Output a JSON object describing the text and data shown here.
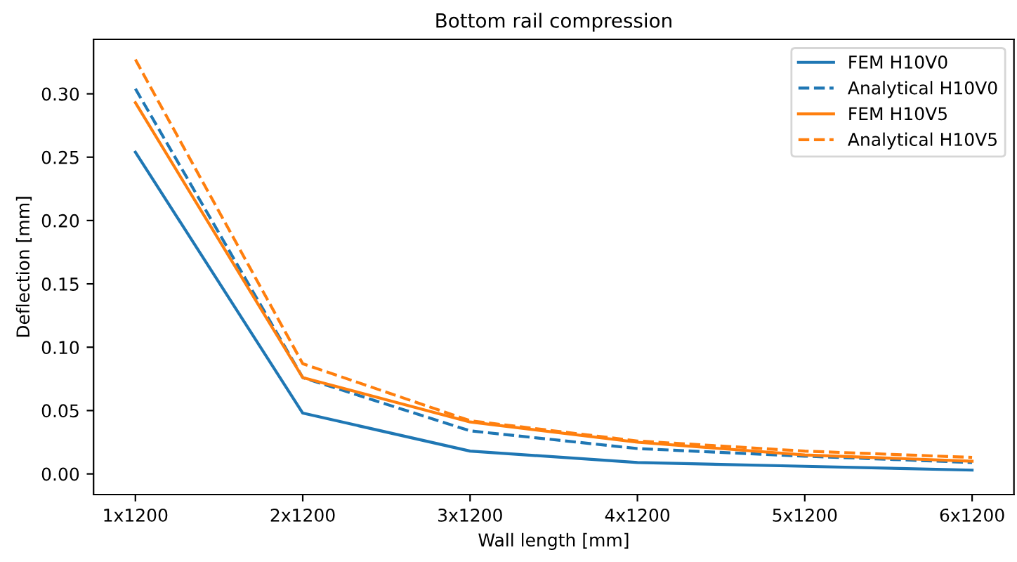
{
  "chart_data": {
    "type": "line",
    "title": "Bottom rail compression",
    "xlabel": "Wall length [mm]",
    "ylabel": "Deflection [mm]",
    "categories": [
      "1x1200",
      "2x1200",
      "3x1200",
      "4x1200",
      "5x1200",
      "6x1200"
    ],
    "series": [
      {
        "name": "FEM H10V0",
        "color": "#1f77b4",
        "line_style": "solid",
        "values": [
          0.254,
          0.048,
          0.018,
          0.009,
          0.006,
          0.003
        ]
      },
      {
        "name": "Analytical H10V0",
        "color": "#1f77b4",
        "line_style": "dashed",
        "values": [
          0.304,
          0.076,
          0.034,
          0.02,
          0.014,
          0.009
        ]
      },
      {
        "name": "FEM H10V5",
        "color": "#ff7f0e",
        "line_style": "solid",
        "values": [
          0.293,
          0.076,
          0.041,
          0.025,
          0.015,
          0.01
        ]
      },
      {
        "name": "Analytical H10V5",
        "color": "#ff7f0e",
        "line_style": "dashed",
        "values": [
          0.327,
          0.087,
          0.042,
          0.026,
          0.018,
          0.013
        ]
      }
    ],
    "ylim": [
      -0.0163,
      0.343
    ],
    "yticks": [
      {
        "value": 0,
        "label": "0.00"
      },
      {
        "value": 0.05,
        "label": "0.05"
      },
      {
        "value": 0.1,
        "label": "0.10"
      },
      {
        "value": 0.15,
        "label": "0.15"
      },
      {
        "value": 0.2,
        "label": "0.20"
      },
      {
        "value": 0.25,
        "label": "0.25"
      },
      {
        "value": 0.3,
        "label": "0.30"
      }
    ],
    "legend": "top right",
    "grid": false
  }
}
